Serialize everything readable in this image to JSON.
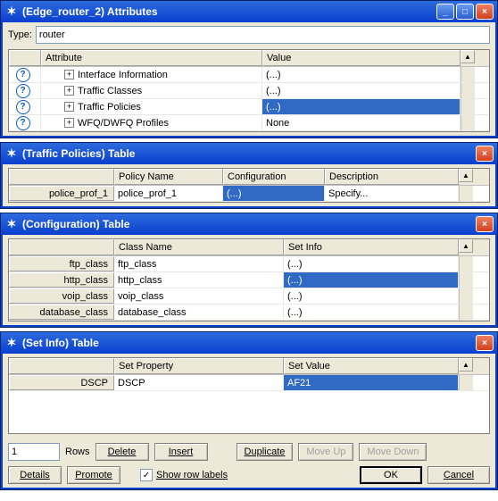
{
  "colors": {
    "titlebar_bg": "#0a3fce",
    "titlebar_text": "#ffffff",
    "window_bg": "#ece9d8",
    "selected_bg": "#316ac5",
    "selected_text": "#ffffff",
    "border": "#848078",
    "close_bg": "#d04020"
  },
  "win_attributes": {
    "title": "(Edge_router_2) Attributes",
    "type_label": "Type:",
    "type_value": "router",
    "columns": {
      "attribute": "Attribute",
      "value": "Value"
    },
    "col_widths": {
      "lead": 36,
      "attribute": 248,
      "value": 222,
      "scroll": 16
    },
    "rows": [
      {
        "label": "Interface Information",
        "value": "(...)",
        "selected": false
      },
      {
        "label": "Traffic Classes",
        "value": "(...)",
        "selected": false
      },
      {
        "label": "Traffic Policies",
        "value": "(...)",
        "selected": true
      },
      {
        "label": "WFQ/DWFQ Profiles",
        "value": "None",
        "selected": false
      }
    ]
  },
  "win_policies": {
    "title": "(Traffic Policies) Table",
    "columns": {
      "policy_name": "Policy Name",
      "configuration": "Configuration",
      "description": "Description"
    },
    "col_widths": {
      "lead": 118,
      "policy_name": 122,
      "configuration": 114,
      "description": 150,
      "scroll": 16
    },
    "rows": [
      {
        "lead": "police_prof_1",
        "policy_name": "police_prof_1",
        "configuration": "(...)",
        "conf_selected": true,
        "description": "Specify..."
      }
    ]
  },
  "win_config": {
    "title": "(Configuration) Table",
    "columns": {
      "class_name": "Class Name",
      "set_info": "Set Info"
    },
    "col_widths": {
      "lead": 118,
      "class_name": 190,
      "set_info": 196,
      "scroll": 16
    },
    "rows": [
      {
        "lead": "ftp_class",
        "class_name": "ftp_class",
        "set_info": "(...)",
        "selected": false
      },
      {
        "lead": "http_class",
        "class_name": "http_class",
        "set_info": "(...)",
        "selected": true
      },
      {
        "lead": "voip_class",
        "class_name": "voip_class",
        "set_info": "(...)",
        "selected": false
      },
      {
        "lead": "database_class",
        "class_name": "database_class",
        "set_info": "(...)",
        "selected": false
      }
    ]
  },
  "win_setinfo": {
    "title": "(Set Info) Table",
    "columns": {
      "set_property": "Set Property",
      "set_value": "Set Value"
    },
    "col_widths": {
      "lead": 118,
      "set_property": 190,
      "set_value": 196,
      "scroll": 16
    },
    "rows": [
      {
        "lead": "DSCP",
        "set_property": "DSCP",
        "set_value": "AF21",
        "val_selected": true
      }
    ],
    "rows_input": "1",
    "rows_label": "Rows",
    "buttons": {
      "delete": "Delete",
      "insert": "Insert",
      "duplicate": "Duplicate",
      "move_up": "Move Up",
      "move_down": "Move Down",
      "details": "Details",
      "promote": "Promote",
      "ok": "OK",
      "cancel": "Cancel"
    },
    "show_row_labels": "Show row labels",
    "show_row_labels_checked": true
  }
}
